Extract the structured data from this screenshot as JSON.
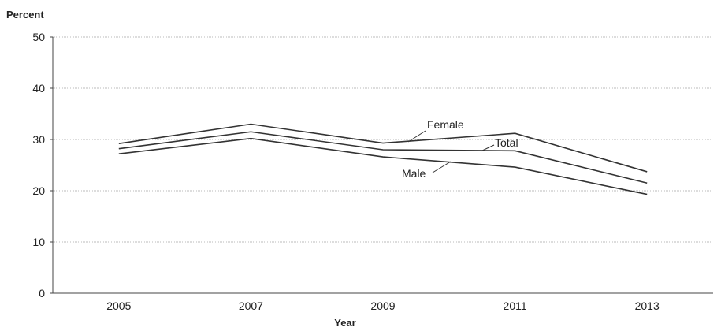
{
  "chart_data": {
    "type": "line",
    "ylabel": "Percent",
    "xlabel": "Year",
    "ylim": [
      0,
      50
    ],
    "yticks": [
      0,
      10,
      20,
      30,
      40,
      50
    ],
    "xlim": [
      2004,
      2014
    ],
    "xticks": [
      2005,
      2007,
      2009,
      2011,
      2013
    ],
    "grid": true,
    "x": [
      2005,
      2007,
      2009,
      2011,
      2013
    ],
    "series": [
      {
        "name": "Female",
        "values": [
          29.2,
          33.0,
          29.3,
          31.2,
          23.7
        ]
      },
      {
        "name": "Total",
        "values": [
          28.2,
          31.5,
          28.0,
          27.8,
          21.5
        ]
      },
      {
        "name": "Male",
        "values": [
          27.2,
          30.2,
          26.6,
          24.6,
          19.3
        ]
      }
    ],
    "line_color": "#333333",
    "grid_color": "#bbbbbb"
  }
}
